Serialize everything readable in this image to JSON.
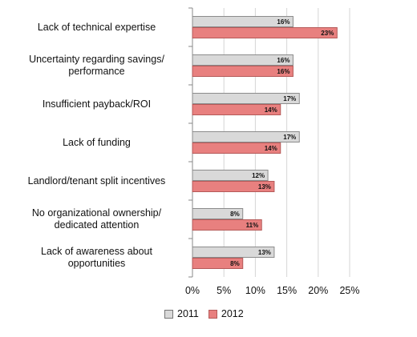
{
  "chart_data": {
    "type": "bar",
    "orientation": "horizontal",
    "categories": [
      "Lack of technical expertise",
      "Uncertainty regarding savings/ performance",
      "Insufficient payback/ROI",
      "Lack of funding",
      "Landlord/tenant split incentives",
      "No organizational ownership/ dedicated attention",
      "Lack of awareness about opportunities"
    ],
    "category_lines": [
      [
        "Lack of technical expertise"
      ],
      [
        "Uncertainty regarding savings/",
        "performance"
      ],
      [
        "Insufficient payback/ROI"
      ],
      [
        "Lack of funding"
      ],
      [
        "Landlord/tenant split incentives"
      ],
      [
        "No organizational ownership/",
        "dedicated attention"
      ],
      [
        "Lack of awareness about",
        "opportunities"
      ]
    ],
    "series": [
      {
        "name": "2011",
        "color": "#d9d9d9",
        "values": [
          16,
          16,
          17,
          17,
          12,
          8,
          13
        ],
        "labels": [
          "16%",
          "16%",
          "17%",
          "17%",
          "12%",
          "8%",
          "13%"
        ]
      },
      {
        "name": "2012",
        "color": "#e8807f",
        "values": [
          23,
          16,
          14,
          14,
          13,
          11,
          8
        ],
        "labels": [
          "23%",
          "16%",
          "14%",
          "14%",
          "13%",
          "11%",
          "8%"
        ]
      }
    ],
    "xlim": [
      0,
      25
    ],
    "xticks": [
      0,
      5,
      10,
      15,
      20,
      25
    ],
    "xtick_labels": [
      "0%",
      "5%",
      "10%",
      "15%",
      "20%",
      "25%"
    ],
    "grid": true,
    "legend_position": "bottom"
  }
}
